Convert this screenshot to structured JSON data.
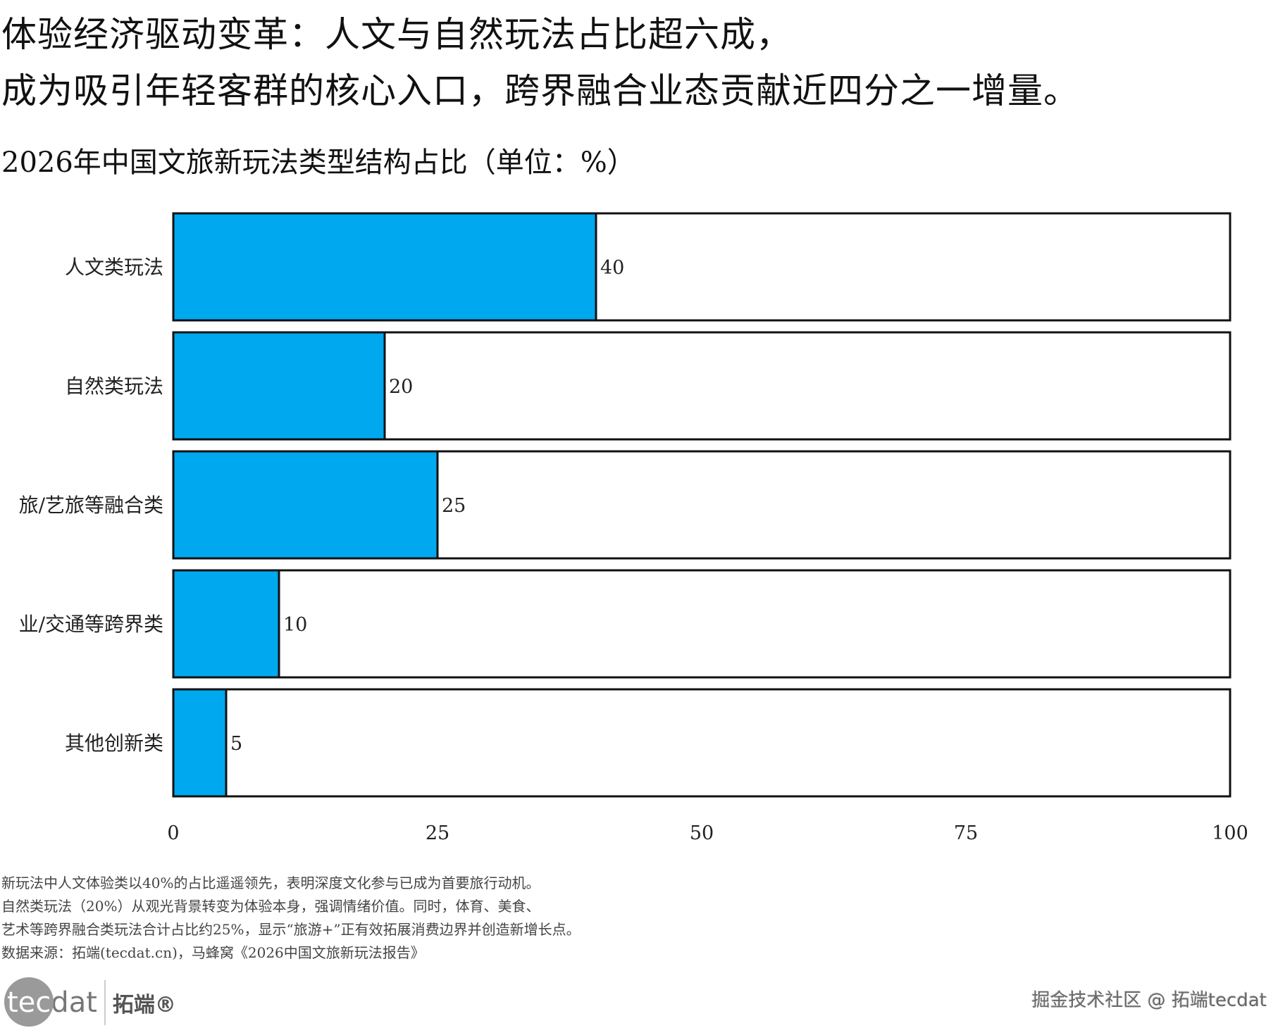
{
  "header": {
    "title_line1": "体验经济驱动变革：人文与自然玩法占比超六成，",
    "title_line2": "成为吸引年轻客群的核心入口，跨界融合业态贡献近四分之一增量。"
  },
  "chart_data": {
    "type": "bar",
    "orientation": "horizontal",
    "title": "2026年中国文旅新玩法类型结构占比（单位：%）",
    "categories": [
      "人文类玩法",
      "自然类玩法",
      "旅/艺旅等融合类",
      "业/交通等跨界类",
      "其他创新类"
    ],
    "values": [
      40,
      20,
      25,
      10,
      5
    ],
    "value_labels": [
      "40",
      "20",
      "25",
      "10",
      "5"
    ],
    "xlim": [
      0,
      100
    ],
    "xticks": [
      "0",
      "25",
      "50",
      "75",
      "100"
    ],
    "xlabel": "",
    "ylabel": "",
    "grid": false,
    "bar_color": "#00a8f0",
    "track_color": "#ffffff",
    "border_color": "#111111"
  },
  "footer": {
    "notes": [
      "新玩法中人文体验类以40%的占比遥遥领先，表明深度文化参与已成为首要旅行动机。",
      "自然类玩法（20%）从观光背景转变为体验本身，强调情绪价值。同时，体育、美食、",
      "艺术等跨界融合类玩法合计占比约25%，显示“旅游+”正有效拓展消费边界并创造新增长点。",
      "数据来源：拓端(tecdat.cn)，马蜂窝《2026中国文旅新玩法报告》"
    ],
    "logo_text": "tecdat 拓端®",
    "logo_tec": "tec",
    "logo_dat": "dat",
    "logo_cn": "拓端®",
    "watermark": "掘金技术社区 @ 拓端tecdat"
  }
}
